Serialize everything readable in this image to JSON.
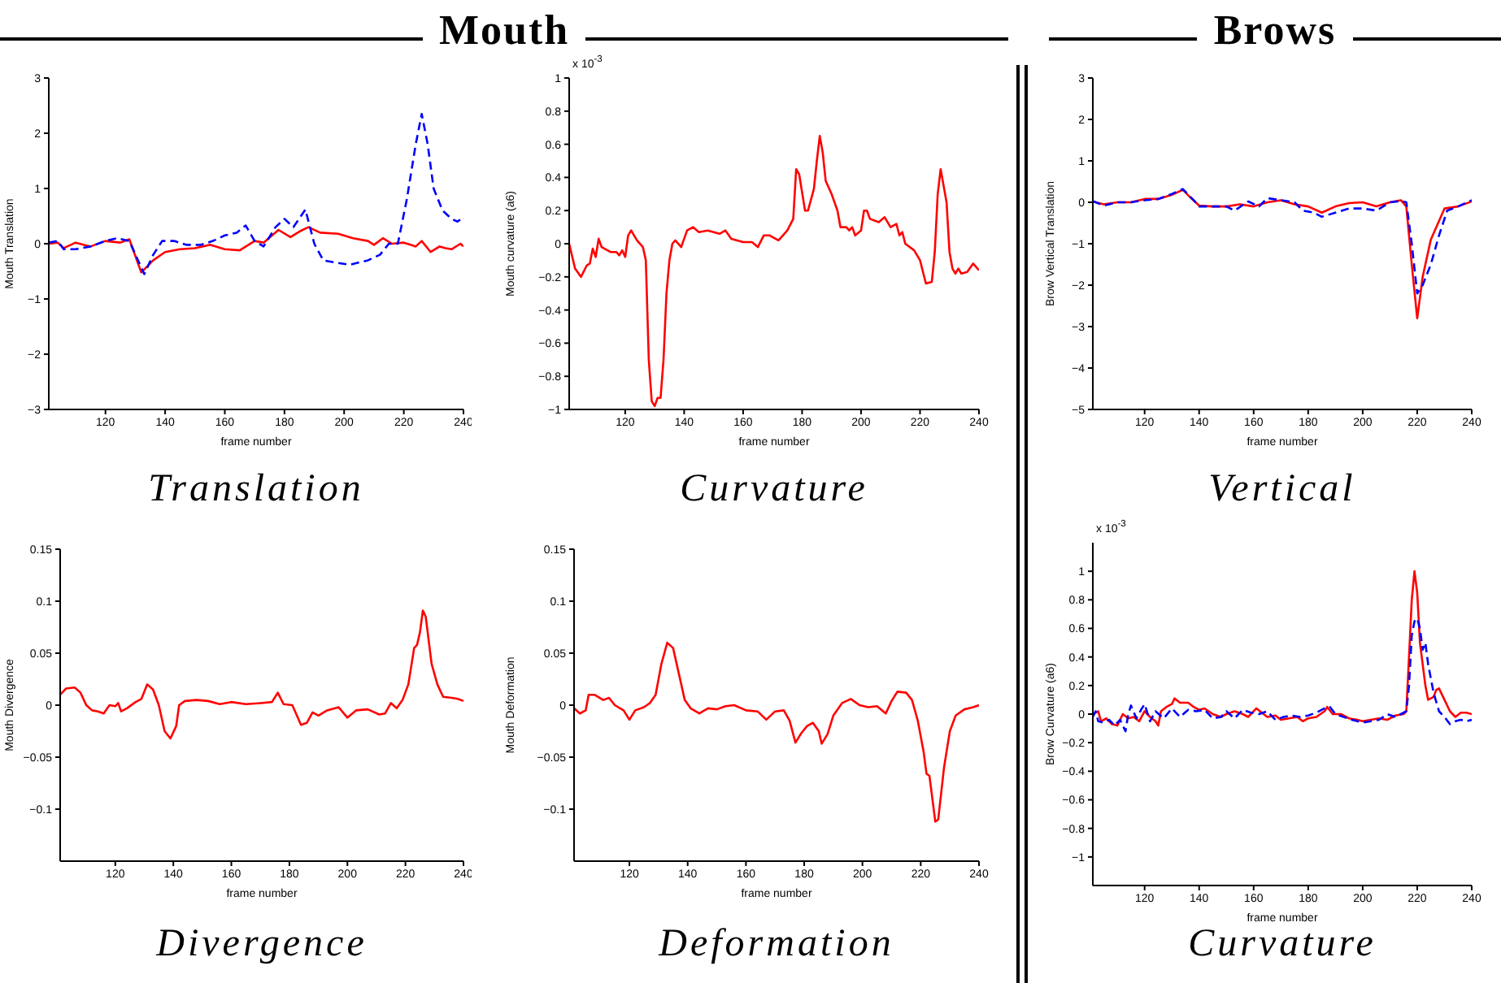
{
  "chart_data": [
    {
      "type": "line",
      "title": "Mouth",
      "subtitle": "Translation",
      "xlabel": "frame number",
      "ylabel": "Mouth Translation",
      "xlim": [
        101,
        240
      ],
      "xticks": [
        120,
        140,
        160,
        180,
        200,
        220,
        240
      ],
      "ylim": [
        -3,
        3
      ],
      "yticks": [
        -3,
        -2,
        -1,
        0,
        1,
        2,
        3
      ],
      "series": [
        {
          "color": "#ff0000",
          "line_style": "solid",
          "x": [
            101,
            104,
            106,
            110,
            115,
            120,
            125,
            128,
            132,
            136,
            140,
            145,
            150,
            155,
            160,
            165,
            170,
            173,
            178,
            182,
            185,
            188,
            192,
            198,
            203,
            208,
            210,
            213,
            216,
            220,
            224,
            226,
            229,
            232,
            234,
            236,
            239,
            240
          ],
          "values": [
            0,
            0.02,
            -0.08,
            0.02,
            -0.05,
            0.05,
            0.02,
            0.08,
            -0.52,
            -0.3,
            -0.15,
            -0.1,
            -0.08,
            -0.02,
            -0.1,
            -0.12,
            0.05,
            0.02,
            0.25,
            0.12,
            0.22,
            0.3,
            0.2,
            0.18,
            0.1,
            0.05,
            -0.02,
            0.1,
            0,
            0.02,
            -0.05,
            0.05,
            -0.15,
            -0.05,
            -0.08,
            -0.1,
            0,
            -0.05
          ]
        },
        {
          "color": "#0000ff",
          "line_style": "dashed",
          "x": [
            101,
            104,
            106,
            110,
            115,
            120,
            124,
            128,
            133,
            136,
            139,
            143,
            147,
            152,
            156,
            160,
            164,
            167,
            170,
            173,
            177,
            180,
            183,
            187,
            190,
            193,
            198,
            202,
            208,
            212,
            215,
            218,
            221,
            224,
            226,
            228,
            230,
            233,
            236,
            238,
            240
          ],
          "values": [
            0.02,
            0.05,
            -0.1,
            -0.1,
            -0.05,
            0.05,
            0.1,
            0.05,
            -0.55,
            -0.2,
            0.05,
            0.05,
            -0.02,
            -0.02,
            0.05,
            0.15,
            0.2,
            0.33,
            0.05,
            -0.05,
            0.3,
            0.45,
            0.3,
            0.62,
            0,
            -0.3,
            -0.35,
            -0.38,
            -0.3,
            -0.2,
            0,
            0,
            0.8,
            1.8,
            2.35,
            1.8,
            1,
            0.6,
            0.45,
            0.4,
            0.48
          ]
        }
      ]
    },
    {
      "type": "line",
      "subtitle": "Curvature",
      "xlabel": "frame number",
      "ylabel": "Mouth curvature (a6)",
      "annotations": [
        "x 10$^{-3}$"
      ],
      "xlim": [
        101,
        240
      ],
      "xticks": [
        120,
        140,
        160,
        180,
        200,
        220,
        240
      ],
      "ylim": [
        -1,
        1
      ],
      "yticks": [
        -1,
        -0.8,
        -0.6,
        -0.4,
        -0.2,
        0,
        0.2,
        0.4,
        0.6,
        0.8,
        1
      ],
      "series": [
        {
          "color": "#ff0000",
          "line_style": "solid",
          "x": [
            101,
            103,
            105,
            107,
            108,
            109,
            110,
            111,
            112,
            115,
            117,
            118,
            119,
            120,
            121,
            122,
            124,
            126,
            127,
            128,
            129,
            130,
            131,
            132,
            133,
            134,
            135,
            136,
            137,
            139,
            141,
            143,
            145,
            148,
            152,
            154,
            156,
            160,
            163,
            165,
            167,
            169,
            172,
            175,
            177,
            178,
            179,
            181,
            182,
            184,
            185,
            186,
            187,
            188,
            190,
            192,
            193,
            195,
            196,
            197,
            198,
            200,
            201,
            202,
            203,
            206,
            208,
            210,
            212,
            213,
            214,
            215,
            218,
            220,
            222,
            224,
            225,
            226,
            227,
            229,
            230,
            231,
            232,
            233,
            234,
            236,
            238,
            240
          ],
          "values": [
            0,
            -0.15,
            -0.2,
            -0.13,
            -0.12,
            -0.03,
            -0.08,
            0.03,
            -0.02,
            -0.05,
            -0.05,
            -0.07,
            -0.04,
            -0.08,
            0.05,
            0.08,
            0.02,
            -0.02,
            -0.1,
            -0.7,
            -0.95,
            -0.98,
            -0.93,
            -0.93,
            -0.7,
            -0.3,
            -0.1,
            0,
            0.02,
            -0.02,
            0.08,
            0.1,
            0.07,
            0.08,
            0.06,
            0.08,
            0.03,
            0.01,
            0.01,
            -0.02,
            0.05,
            0.05,
            0.02,
            0.08,
            0.15,
            0.45,
            0.42,
            0.2,
            0.2,
            0.33,
            0.5,
            0.65,
            0.55,
            0.38,
            0.3,
            0.2,
            0.1,
            0.1,
            0.08,
            0.1,
            0.05,
            0.08,
            0.2,
            0.2,
            0.15,
            0.13,
            0.16,
            0.1,
            0.12,
            0.05,
            0.07,
            0,
            -0.04,
            -0.1,
            -0.24,
            -0.23,
            -0.05,
            0.3,
            0.45,
            0.25,
            -0.05,
            -0.15,
            -0.18,
            -0.15,
            -0.18,
            -0.17,
            -0.12,
            -0.16
          ]
        }
      ]
    },
    {
      "type": "line",
      "title": "Brows",
      "subtitle": "Vertical",
      "xlabel": "frame number",
      "ylabel": "Brow Vertical Translation",
      "xlim": [
        101,
        240
      ],
      "xticks": [
        120,
        140,
        160,
        180,
        200,
        220,
        240
      ],
      "ylim": [
        -5,
        3
      ],
      "yticks": [
        -5,
        -4,
        -3,
        -2,
        -1,
        0,
        1,
        2,
        3
      ],
      "series": [
        {
          "color": "#ff0000",
          "line_style": "solid",
          "x": [
            101,
            105,
            110,
            115,
            120,
            125,
            130,
            134,
            137,
            140,
            145,
            150,
            155,
            160,
            165,
            170,
            175,
            180,
            185,
            190,
            195,
            200,
            205,
            210,
            214,
            216,
            218,
            220,
            222,
            225,
            230,
            235,
            240
          ],
          "values": [
            0.02,
            -0.05,
            0,
            0,
            0.08,
            0.08,
            0.18,
            0.3,
            0.1,
            -0.08,
            -0.1,
            -0.1,
            -0.05,
            -0.1,
            0,
            0.05,
            -0.05,
            -0.1,
            -0.25,
            -0.1,
            -0.02,
            0,
            -0.1,
            0,
            0.05,
            -0.1,
            -1.5,
            -2.8,
            -1.8,
            -0.9,
            -0.15,
            -0.1,
            0.02
          ]
        },
        {
          "color": "#0000ff",
          "line_style": "dashed",
          "x": [
            101,
            105,
            110,
            115,
            120,
            125,
            130,
            134,
            138,
            140,
            145,
            150,
            153,
            158,
            162,
            165,
            170,
            175,
            178,
            182,
            185,
            190,
            195,
            200,
            205,
            210,
            214,
            216,
            218,
            220,
            222,
            225,
            228,
            231,
            235,
            240
          ],
          "values": [
            0.03,
            -0.08,
            0,
            0,
            0.05,
            0.08,
            0.2,
            0.32,
            0.05,
            -0.1,
            -0.1,
            -0.1,
            -0.2,
            0.02,
            -0.1,
            0.1,
            0.05,
            0,
            -0.2,
            -0.25,
            -0.35,
            -0.25,
            -0.15,
            -0.15,
            -0.2,
            0,
            0.03,
            0,
            -1,
            -2.2,
            -2,
            -1.5,
            -0.8,
            -0.2,
            -0.1,
            0.05
          ]
        }
      ]
    },
    {
      "type": "line",
      "subtitle": "Divergence",
      "xlabel": "frame number",
      "ylabel": "Mouth Divergence",
      "xlim": [
        101,
        240
      ],
      "xticks": [
        120,
        140,
        160,
        180,
        200,
        220,
        240
      ],
      "ylim": [
        -0.15,
        0.15
      ],
      "yticks": [
        -0.1,
        -0.05,
        0,
        0.05,
        0.1,
        0.15
      ],
      "series": [
        {
          "color": "#ff0000",
          "line_style": "solid",
          "x": [
            101,
            103,
            106,
            108,
            110,
            112,
            114,
            116,
            118,
            120,
            121,
            122,
            124,
            127,
            129,
            131,
            133,
            135,
            137,
            139,
            141,
            142,
            144,
            148,
            152,
            156,
            160,
            165,
            170,
            174,
            176,
            178,
            181,
            184,
            186,
            188,
            190,
            193,
            197,
            200,
            203,
            207,
            211,
            213,
            215,
            217,
            219,
            221,
            223,
            224,
            225,
            226,
            227,
            229,
            231,
            233,
            236,
            238,
            240
          ],
          "values": [
            0.01,
            0.016,
            0.017,
            0.012,
            0,
            -0.005,
            -0.006,
            -0.008,
            0,
            -0.001,
            0.002,
            -0.006,
            -0.003,
            0.003,
            0.006,
            0.02,
            0.015,
            0,
            -0.025,
            -0.032,
            -0.02,
            0,
            0.004,
            0.005,
            0.004,
            0.001,
            0.003,
            0.001,
            0.002,
            0.003,
            0.012,
            0.001,
            0,
            -0.019,
            -0.017,
            -0.007,
            -0.01,
            -0.005,
            -0.002,
            -0.012,
            -0.005,
            -0.004,
            -0.009,
            -0.008,
            0.002,
            -0.003,
            0.005,
            0.02,
            0.055,
            0.058,
            0.07,
            0.091,
            0.085,
            0.04,
            0.02,
            0.008,
            0.007,
            0.006,
            0.004
          ]
        }
      ]
    },
    {
      "type": "line",
      "subtitle": "Deformation",
      "xlabel": "frame number",
      "ylabel": "Mouth Deformation",
      "xlim": [
        101,
        240
      ],
      "xticks": [
        120,
        140,
        160,
        180,
        200,
        220,
        240
      ],
      "ylim": [
        -0.15,
        0.15
      ],
      "yticks": [
        -0.1,
        -0.05,
        0,
        0.05,
        0.1,
        0.15
      ],
      "series": [
        {
          "color": "#ff0000",
          "line_style": "solid",
          "x": [
            101,
            103,
            105,
            106,
            108,
            111,
            113,
            115,
            118,
            120,
            122,
            125,
            127,
            129,
            131,
            133,
            135,
            137,
            139,
            141,
            144,
            147,
            150,
            153,
            156,
            160,
            164,
            167,
            170,
            173,
            175,
            177,
            179,
            181,
            183,
            185,
            186,
            188,
            190,
            193,
            196,
            199,
            202,
            205,
            208,
            210,
            212,
            215,
            217,
            219,
            221,
            222,
            223,
            224,
            225,
            226,
            228,
            230,
            232,
            235,
            238,
            240
          ],
          "values": [
            -0.003,
            -0.008,
            -0.005,
            0.01,
            0.01,
            0.005,
            0.007,
            0,
            -0.005,
            -0.014,
            -0.005,
            -0.002,
            0.002,
            0.01,
            0.04,
            0.06,
            0.055,
            0.03,
            0.005,
            -0.003,
            -0.008,
            -0.003,
            -0.004,
            -0.001,
            0,
            -0.005,
            -0.006,
            -0.014,
            -0.006,
            -0.005,
            -0.015,
            -0.036,
            -0.027,
            -0.02,
            -0.017,
            -0.025,
            -0.037,
            -0.028,
            -0.01,
            0.002,
            0.006,
            0,
            -0.002,
            -0.001,
            -0.008,
            0.004,
            0.013,
            0.012,
            0.005,
            -0.015,
            -0.045,
            -0.066,
            -0.068,
            -0.09,
            -0.112,
            -0.11,
            -0.06,
            -0.025,
            -0.01,
            -0.004,
            -0.002,
            0
          ]
        }
      ]
    },
    {
      "type": "line",
      "subtitle": "Curvature",
      "xlabel": "frame number",
      "ylabel": "Brow Curvature (a6)",
      "annotations": [
        "x 10$^{-3}$"
      ],
      "xlim": [
        101,
        240
      ],
      "xticks": [
        120,
        140,
        160,
        180,
        200,
        220,
        240
      ],
      "ylim": [
        -1.2,
        1.2
      ],
      "yticks": [
        -1,
        -0.8,
        -0.6,
        -0.4,
        -0.2,
        0,
        0.2,
        0.4,
        0.6,
        0.8,
        1
      ],
      "series": [
        {
          "color": "#ff0000",
          "line_style": "solid",
          "x": [
            101,
            103,
            104,
            106,
            108,
            110,
            112,
            114,
            116,
            118,
            120,
            122,
            124,
            125,
            126,
            128,
            130,
            131,
            133,
            136,
            138,
            140,
            142,
            145,
            148,
            150,
            153,
            156,
            158,
            161,
            163,
            165,
            168,
            170,
            173,
            176,
            178,
            180,
            183,
            186,
            187,
            189,
            192,
            195,
            198,
            200,
            203,
            206,
            209,
            212,
            215,
            216,
            217,
            218,
            219,
            220,
            221,
            223,
            224,
            226,
            227,
            228,
            230,
            232,
            234,
            236,
            238,
            240
          ],
          "values": [
            0,
            0.02,
            -0.05,
            -0.03,
            -0.07,
            -0.08,
            0,
            -0.03,
            -0.02,
            -0.05,
            0.02,
            -0.02,
            -0.05,
            -0.08,
            0.02,
            0.05,
            0.07,
            0.11,
            0.08,
            0.08,
            0.05,
            0.03,
            0.04,
            0,
            -0.02,
            0,
            0.02,
            0,
            -0.02,
            0.04,
            0.01,
            -0.02,
            -0.01,
            -0.04,
            -0.03,
            -0.02,
            -0.05,
            -0.03,
            -0.02,
            0.02,
            0.05,
            0,
            0,
            -0.03,
            -0.04,
            -0.05,
            -0.04,
            -0.03,
            -0.04,
            -0.01,
            0,
            0.02,
            0.4,
            0.8,
            1,
            0.85,
            0.5,
            0.2,
            0.1,
            0.12,
            0.17,
            0.18,
            0.1,
            0.02,
            -0.02,
            0.01,
            0.01,
            0
          ]
        },
        {
          "color": "#0000ff",
          "line_style": "dashed",
          "x": [
            101,
            102,
            103,
            105,
            107,
            109,
            111,
            113,
            114,
            115,
            117,
            119,
            120,
            122,
            124,
            127,
            130,
            133,
            136,
            139,
            142,
            145,
            148,
            150,
            153,
            156,
            159,
            162,
            165,
            168,
            171,
            174,
            177,
            180,
            183,
            186,
            188,
            190,
            193,
            196,
            200,
            203,
            206,
            209,
            212,
            215,
            216,
            217,
            218,
            219,
            220,
            221,
            222,
            223,
            224,
            226,
            228,
            230,
            232,
            234,
            236,
            238,
            240
          ],
          "values": [
            -0.02,
            0.02,
            -0.05,
            -0.06,
            -0.04,
            -0.08,
            -0.04,
            -0.12,
            0,
            0.06,
            -0.03,
            0.04,
            0.07,
            -0.05,
            0.02,
            -0.03,
            0.04,
            -0.02,
            0.03,
            0.02,
            0.03,
            -0.03,
            -0.02,
            0.02,
            -0.03,
            0.03,
            0.01,
            0,
            0.02,
            -0.04,
            -0.02,
            -0.01,
            -0.02,
            -0.01,
            0.01,
            0.04,
            0.05,
            0,
            -0.02,
            -0.04,
            -0.06,
            -0.05,
            -0.04,
            0,
            -0.02,
            0.01,
            0.02,
            0.2,
            0.55,
            0.65,
            0.67,
            0.6,
            0.45,
            0.5,
            0.35,
            0.15,
            0.02,
            -0.02,
            -0.07,
            -0.05,
            -0.04,
            -0.05,
            -0.04
          ]
        }
      ]
    }
  ]
}
